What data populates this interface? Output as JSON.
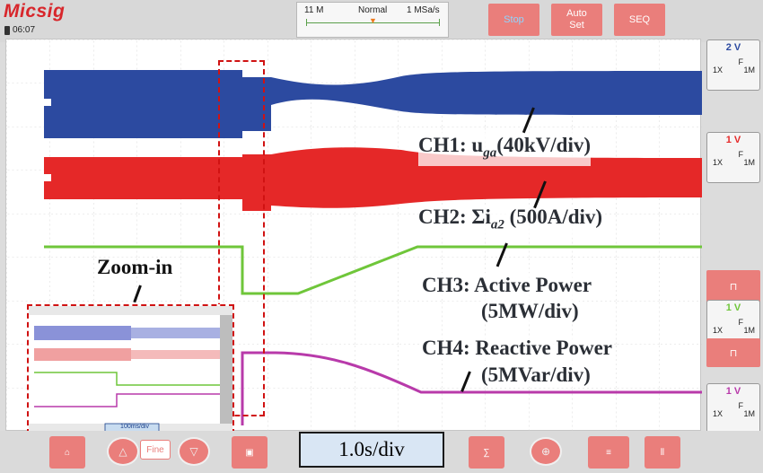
{
  "header": {
    "brand": "Micsig",
    "clock": "06:07",
    "acquisition": {
      "memory": "11 M",
      "mode": "Normal",
      "rate": "1 MSa/s"
    },
    "buttons": {
      "stop": "Stop",
      "auto_set": "Auto\nSet",
      "seq": "SEQ"
    }
  },
  "channels": [
    {
      "id": "1",
      "scale": "2 V",
      "coupling": "F",
      "impedance": "1M",
      "probe": "1X",
      "color": "#2c4aa0"
    },
    {
      "id": "2",
      "scale": "1 V",
      "coupling": "F",
      "impedance": "1M",
      "probe": "1X",
      "color": "#e52828"
    },
    {
      "id": "3",
      "scale": "1 V",
      "coupling": "F",
      "impedance": "1M",
      "probe": "1X",
      "color": "#6fc63a"
    },
    {
      "id": "4",
      "scale": "1 V",
      "coupling": "F",
      "impedance": "1M",
      "probe": "1X",
      "color": "#b83aaa"
    }
  ],
  "annotations": {
    "ch1": "CH1: u",
    "ch1_sub": "ga",
    "ch1_unit": "(40kV/div)",
    "ch2": "CH2: Σi",
    "ch2_sub": "a2",
    "ch2_unit": " (500A/div)",
    "ch3_line1": "CH3: Active Power",
    "ch3_line2": "(5MW/div)",
    "ch4_line1": "CH4: Reactive Power",
    "ch4_line2": "(5MVar/div)",
    "zoom": "Zoom-in"
  },
  "footer": {
    "fine_label": "Fine",
    "timebase": "1.0s/div",
    "zoom_timebase": "100ms/div"
  },
  "icons": [
    "home-icon",
    "up-arrow-icon",
    "down-arrow-icon",
    "save-icon",
    "math-icon",
    "cursor-icon",
    "measure-icon",
    "split-icon",
    "pulse-icon"
  ]
}
